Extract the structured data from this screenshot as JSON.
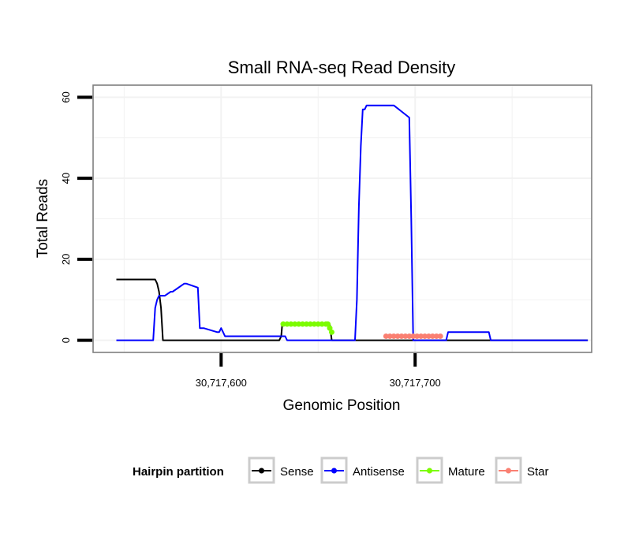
{
  "chart_data": {
    "type": "line",
    "title": "Small RNA-seq Read Density",
    "xlabel": "Genomic Position",
    "ylabel": "Total Reads",
    "xlim": [
      30717534,
      30717791
    ],
    "ylim": [
      -3,
      63
    ],
    "x_ticks": [
      {
        "value": 30717600,
        "label": "30,717,600"
      },
      {
        "value": 30717700,
        "label": "30,717,700"
      }
    ],
    "y_ticks": [
      {
        "value": 0,
        "label": "0"
      },
      {
        "value": 20,
        "label": "20"
      },
      {
        "value": 40,
        "label": "40"
      },
      {
        "value": 60,
        "label": "60"
      }
    ],
    "grid": true,
    "legend": {
      "title": "Hairpin partition",
      "placement": "bottom",
      "entries": [
        {
          "name": "Sense",
          "color": "#000000"
        },
        {
          "name": "Antisense",
          "color": "#0000ff"
        },
        {
          "name": "Mature",
          "color": "#7cfc00"
        },
        {
          "name": "Star",
          "color": "#fa8072"
        }
      ]
    },
    "series": [
      {
        "name": "Sense",
        "color": "#000000",
        "marker": false,
        "x": [
          30717546,
          30717566,
          30717567,
          30717568,
          30717569,
          30717570,
          30717571,
          30717630,
          30717631,
          30717631.5,
          30717656,
          30717657,
          30717658,
          30717789
        ],
        "y": [
          15,
          15,
          14,
          12,
          8,
          0,
          0,
          0,
          1,
          4,
          4,
          0,
          0,
          0
        ]
      },
      {
        "name": "Antisense",
        "color": "#0000ff",
        "marker": false,
        "x": [
          30717546,
          30717565,
          30717566,
          30717567,
          30717568,
          30717569,
          30717570,
          30717571,
          30717574,
          30717575,
          30717581,
          30717582,
          30717588,
          30717589,
          30717590,
          30717591,
          30717598,
          30717599,
          30717600,
          30717601,
          30717602,
          30717633,
          30717634,
          30717669,
          30717670,
          30717671,
          30717672,
          30717673,
          30717674,
          30717675,
          30717676,
          30717677,
          30717678,
          30717679,
          30717680,
          30717681,
          30717682,
          30717683,
          30717684,
          30717685,
          30717688,
          30717689,
          30717697,
          30717698,
          30717699,
          30717700,
          30717701,
          30717702,
          30717703,
          30717704,
          30717705,
          30717706,
          30717707,
          30717708,
          30717709,
          30717710,
          30717711,
          30717712,
          30717713,
          30717714,
          30717715,
          30717716,
          30717717,
          30717718,
          30717719,
          30717720,
          30717721,
          30717722,
          30717723,
          30717724,
          30717725,
          30717726,
          30717727,
          30717728,
          30717729,
          30717730,
          30717731,
          30717732,
          30717733,
          30717734,
          30717735,
          30717736,
          30717737,
          30717738,
          30717739,
          30717740,
          30717741,
          30717789
        ],
        "y": [
          0,
          0,
          8,
          10,
          11,
          11,
          11,
          11,
          12,
          12,
          14,
          14,
          13,
          3,
          3,
          3,
          2,
          2,
          3,
          2,
          1,
          1,
          0,
          0,
          10,
          33,
          48,
          57,
          57,
          58,
          58,
          58,
          58,
          58,
          58,
          58,
          58,
          58,
          58,
          58,
          58,
          58,
          55,
          30,
          0,
          0,
          0,
          0,
          0,
          0,
          0,
          0,
          0,
          0,
          0,
          0,
          0,
          0,
          0,
          0,
          0,
          0,
          2,
          2,
          2,
          2,
          2,
          2,
          2,
          2,
          2,
          2,
          2,
          2,
          2,
          2,
          2,
          2,
          2,
          2,
          2,
          2,
          2,
          2,
          0,
          0,
          0,
          0
        ]
      },
      {
        "name": "Mature",
        "color": "#7cfc00",
        "marker": true,
        "x": [
          30717632,
          30717634,
          30717636,
          30717638,
          30717640,
          30717642,
          30717644,
          30717646,
          30717648,
          30717650,
          30717652,
          30717654,
          30717655,
          30717656,
          30717657
        ],
        "y": [
          4,
          4,
          4,
          4,
          4,
          4,
          4,
          4,
          4,
          4,
          4,
          4,
          4,
          3,
          2
        ]
      },
      {
        "name": "Star",
        "color": "#fa8072",
        "marker": true,
        "x": [
          30717685,
          30717687,
          30717689,
          30717691,
          30717693,
          30717695,
          30717697,
          30717699,
          30717701,
          30717703,
          30717705,
          30717707,
          30717709,
          30717711,
          30717713
        ],
        "y": [
          1,
          1,
          1,
          1,
          1,
          1,
          1,
          1,
          1,
          1,
          1,
          1,
          1,
          1,
          1
        ]
      }
    ]
  }
}
